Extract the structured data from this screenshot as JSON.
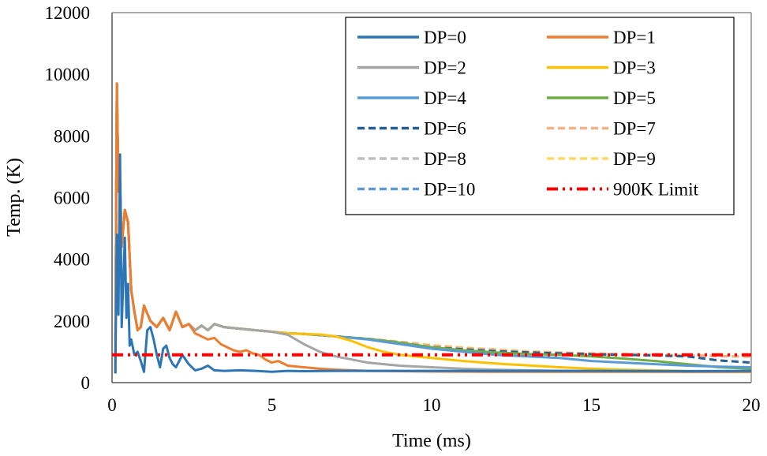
{
  "chart_data": {
    "type": "line",
    "title": "",
    "xlabel": "Time (ms)",
    "ylabel": "Temp. (K)",
    "xlim": [
      0,
      20
    ],
    "ylim": [
      0,
      12000
    ],
    "x_ticks": [
      "0",
      "5",
      "10",
      "15",
      "20"
    ],
    "y_ticks": [
      "0",
      "2000",
      "4000",
      "6000",
      "8000",
      "10000",
      "12000"
    ],
    "grid": false,
    "legend_position": "top-right",
    "series": [
      {
        "name": "DP=0",
        "color": "#2E75B6",
        "dash": "solid",
        "x": [
          0.1,
          0.15,
          0.2,
          0.25,
          0.3,
          0.35,
          0.4,
          0.45,
          0.5,
          0.55,
          0.6,
          0.7,
          0.8,
          0.9,
          1.0,
          1.1,
          1.2,
          1.3,
          1.4,
          1.5,
          1.6,
          1.7,
          1.8,
          1.9,
          2.0,
          2.2,
          2.4,
          2.6,
          2.8,
          3.0,
          3.2,
          3.5,
          4.0,
          4.5,
          5.0,
          5.5,
          6.0,
          7.0,
          8.0,
          10.0,
          12.0,
          15.0,
          18.0,
          20.0
        ],
        "y": [
          300,
          4800,
          2200,
          7400,
          1800,
          3300,
          4700,
          2100,
          3200,
          1200,
          1400,
          900,
          1000,
          700,
          350,
          1700,
          1800,
          1400,
          900,
          500,
          1100,
          1200,
          800,
          600,
          500,
          900,
          600,
          400,
          450,
          550,
          400,
          380,
          400,
          380,
          350,
          380,
          370,
          380,
          380,
          380,
          380,
          380,
          370,
          380
        ]
      },
      {
        "name": "DP=1",
        "color": "#ED7D31",
        "dash": "solid",
        "x": [
          0.1,
          0.15,
          0.2,
          0.25,
          0.3,
          0.4,
          0.5,
          0.6,
          0.7,
          0.8,
          0.9,
          1.0,
          1.2,
          1.4,
          1.6,
          1.8,
          2.0,
          2.2,
          2.4,
          2.6,
          2.8,
          3.0,
          3.2,
          3.4,
          3.6,
          3.8,
          4.0,
          4.2,
          4.4,
          4.6,
          4.8,
          5.0,
          5.2,
          5.5,
          6.0,
          6.5,
          7.0,
          7.5,
          8.0,
          9.0,
          10.0,
          12.0,
          15.0,
          20.0
        ],
        "y": [
          300,
          9700,
          6200,
          6500,
          4400,
          5600,
          5200,
          3000,
          2300,
          1700,
          1800,
          2500,
          2000,
          1800,
          2100,
          1700,
          2300,
          1800,
          1900,
          1600,
          1500,
          1400,
          1450,
          1250,
          1150,
          1050,
          1000,
          1050,
          950,
          900,
          750,
          650,
          700,
          550,
          500,
          450,
          420,
          400,
          380,
          370,
          360,
          350,
          350,
          350
        ]
      },
      {
        "name": "DP=2",
        "color": "#A5A5A5",
        "dash": "solid",
        "x": [
          0.1,
          0.15,
          0.2,
          0.25,
          0.3,
          0.4,
          0.5,
          0.6,
          0.7,
          0.8,
          0.9,
          1.0,
          1.2,
          1.4,
          1.6,
          1.8,
          2.0,
          2.2,
          2.4,
          2.6,
          2.8,
          3.0,
          3.2,
          3.5,
          4.0,
          4.5,
          5.0,
          5.5,
          6.0,
          6.5,
          7.0,
          7.5,
          8.0,
          8.5,
          9.0,
          10.0,
          11.0,
          12.0,
          14.0,
          16.0,
          18.0,
          20.0
        ],
        "y": [
          300,
          9700,
          6200,
          6500,
          4400,
          5600,
          5200,
          3000,
          2300,
          1700,
          1800,
          2500,
          2000,
          1800,
          2100,
          1700,
          2300,
          1800,
          1900,
          1700,
          1850,
          1700,
          1900,
          1800,
          1750,
          1700,
          1650,
          1550,
          1250,
          1000,
          850,
          750,
          650,
          600,
          550,
          500,
          450,
          420,
          380,
          360,
          350,
          350
        ]
      },
      {
        "name": "DP=3",
        "color": "#FFC000",
        "dash": "solid",
        "x": [
          0.1,
          0.15,
          0.2,
          0.25,
          0.3,
          0.4,
          0.5,
          0.6,
          0.7,
          0.8,
          0.9,
          1.0,
          1.2,
          1.4,
          1.6,
          1.8,
          2.0,
          2.2,
          2.4,
          2.6,
          2.8,
          3.0,
          3.2,
          3.5,
          4.0,
          4.5,
          5.0,
          5.5,
          6.0,
          6.5,
          7.0,
          7.5,
          8.0,
          8.5,
          9.0,
          10.0,
          11.0,
          12.0,
          13.0,
          14.0,
          15.0,
          16.0,
          18.0,
          20.0
        ],
        "y": [
          300,
          9700,
          6200,
          6500,
          4400,
          5600,
          5200,
          3000,
          2300,
          1700,
          1800,
          2500,
          2000,
          1800,
          2100,
          1700,
          2300,
          1800,
          1900,
          1700,
          1850,
          1700,
          1900,
          1800,
          1750,
          1700,
          1650,
          1600,
          1580,
          1560,
          1500,
          1350,
          1150,
          1000,
          900,
          800,
          700,
          620,
          560,
          500,
          450,
          420,
          380,
          350
        ]
      },
      {
        "name": "DP=4",
        "color": "#5B9BD5",
        "dash": "solid",
        "x": [
          0.1,
          0.15,
          0.2,
          0.25,
          0.3,
          0.4,
          0.5,
          0.6,
          0.7,
          0.8,
          0.9,
          1.0,
          1.2,
          1.4,
          1.6,
          1.8,
          2.0,
          2.2,
          2.4,
          2.6,
          2.8,
          3.0,
          3.2,
          3.5,
          4.0,
          4.5,
          5.0,
          5.5,
          6.0,
          7.0,
          8.0,
          9.0,
          10.0,
          11.0,
          12.0,
          13.0,
          14.0,
          15.0,
          16.0,
          17.0,
          18.0,
          19.0,
          20.0
        ],
        "y": [
          300,
          9700,
          6200,
          6500,
          4400,
          5600,
          5200,
          3000,
          2300,
          1700,
          1800,
          2500,
          2000,
          1800,
          2100,
          1700,
          2300,
          1800,
          1900,
          1700,
          1850,
          1700,
          1900,
          1800,
          1750,
          1700,
          1650,
          1600,
          1580,
          1500,
          1400,
          1250,
          1100,
          1000,
          900,
          850,
          800,
          700,
          650,
          600,
          550,
          520,
          500
        ]
      },
      {
        "name": "DP=5",
        "color": "#70AD47",
        "dash": "solid",
        "x": [
          0.1,
          0.15,
          0.2,
          0.25,
          0.3,
          0.4,
          0.5,
          0.6,
          0.7,
          0.8,
          0.9,
          1.0,
          1.2,
          1.4,
          1.6,
          1.8,
          2.0,
          2.2,
          2.4,
          2.6,
          2.8,
          3.0,
          3.2,
          3.5,
          4.0,
          4.5,
          5.0,
          5.5,
          6.0,
          7.0,
          8.0,
          9.0,
          10.0,
          11.0,
          12.0,
          13.0,
          14.0,
          15.0,
          16.0,
          17.0,
          18.0,
          19.0,
          20.0
        ],
        "y": [
          300,
          9700,
          6200,
          6500,
          4400,
          5600,
          5200,
          3000,
          2300,
          1700,
          1800,
          2500,
          2000,
          1800,
          2100,
          1700,
          2300,
          1800,
          1900,
          1700,
          1850,
          1700,
          1900,
          1800,
          1750,
          1700,
          1650,
          1600,
          1580,
          1500,
          1420,
          1300,
          1150,
          1050,
          980,
          930,
          900,
          850,
          780,
          700,
          600,
          500,
          450
        ]
      },
      {
        "name": "DP=6",
        "color": "#255E91",
        "dash": "dashed",
        "x": [
          0.1,
          0.15,
          0.2,
          0.25,
          0.3,
          0.4,
          0.5,
          0.6,
          0.7,
          0.8,
          0.9,
          1.0,
          1.2,
          1.4,
          1.6,
          1.8,
          2.0,
          2.2,
          2.4,
          2.6,
          2.8,
          3.0,
          3.2,
          3.5,
          4.0,
          4.5,
          5.0,
          5.5,
          6.0,
          7.0,
          8.0,
          9.0,
          10.0,
          11.0,
          12.0,
          13.0,
          14.0,
          15.0,
          16.0,
          17.0,
          18.0,
          19.0,
          20.0
        ],
        "y": [
          300,
          9700,
          6200,
          6500,
          4400,
          5600,
          5200,
          3000,
          2300,
          1700,
          1800,
          2500,
          2000,
          1800,
          2100,
          1700,
          2300,
          1800,
          1900,
          1700,
          1850,
          1700,
          1900,
          1800,
          1750,
          1700,
          1650,
          1600,
          1580,
          1500,
          1420,
          1300,
          1150,
          1080,
          1020,
          980,
          950,
          920,
          900,
          880,
          850,
          720,
          650
        ]
      },
      {
        "name": "DP=7",
        "color": "#F4B183",
        "dash": "dashed",
        "x": [
          0.1,
          0.15,
          0.2,
          0.25,
          0.3,
          0.4,
          0.5,
          0.6,
          0.7,
          0.8,
          0.9,
          1.0,
          1.2,
          1.4,
          1.6,
          1.8,
          2.0,
          2.2,
          2.4,
          2.6,
          2.8,
          3.0,
          3.2,
          3.5,
          4.0,
          4.5,
          5.0,
          5.5,
          6.0,
          7.0,
          8.0,
          9.0,
          10.0,
          11.0,
          12.0,
          13.0,
          14.0,
          15.0,
          16.0,
          17.0,
          18.0,
          19.0,
          20.0
        ],
        "y": [
          300,
          9700,
          6200,
          6500,
          4400,
          5600,
          5200,
          3000,
          2300,
          1700,
          1800,
          2500,
          2000,
          1800,
          2100,
          1700,
          2300,
          1800,
          1900,
          1700,
          1850,
          1700,
          1900,
          1800,
          1750,
          1700,
          1650,
          1600,
          1580,
          1500,
          1420,
          1320,
          1200,
          1120,
          1060,
          1000,
          970,
          940,
          920,
          900,
          880,
          860,
          850
        ]
      },
      {
        "name": "DP=8",
        "color": "#BFBFBF",
        "dash": "dashed",
        "x": [
          0.1,
          0.15,
          0.2,
          0.25,
          0.3,
          0.4,
          0.5,
          0.6,
          0.7,
          0.8,
          0.9,
          1.0,
          1.2,
          1.4,
          1.6,
          1.8,
          2.0,
          2.2,
          2.4,
          2.6,
          2.8,
          3.0,
          3.2,
          3.5,
          4.0,
          4.5,
          5.0,
          5.5,
          6.0,
          7.0,
          8.0,
          9.0,
          10.0,
          11.0,
          12.0,
          13.0,
          14.0,
          15.0,
          16.0,
          17.0,
          18.0,
          19.0,
          20.0
        ],
        "y": [
          300,
          9700,
          6200,
          6500,
          4400,
          5600,
          5200,
          3000,
          2300,
          1700,
          1800,
          2500,
          2000,
          1800,
          2100,
          1700,
          2300,
          1800,
          1900,
          1700,
          1850,
          1700,
          1900,
          1800,
          1750,
          1700,
          1650,
          1600,
          1580,
          1500,
          1420,
          1320,
          1200,
          1120,
          1060,
          1000,
          970,
          940,
          920,
          900,
          880,
          860,
          840
        ]
      },
      {
        "name": "DP=9",
        "color": "#FFD966",
        "dash": "dashed",
        "x": [
          0.1,
          0.15,
          0.2,
          0.25,
          0.3,
          0.4,
          0.5,
          0.6,
          0.7,
          0.8,
          0.9,
          1.0,
          1.2,
          1.4,
          1.6,
          1.8,
          2.0,
          2.2,
          2.4,
          2.6,
          2.8,
          3.0,
          3.2,
          3.5,
          4.0,
          4.5,
          5.0,
          5.5,
          6.0,
          7.0,
          8.0,
          9.0,
          10.0,
          11.0,
          12.0,
          13.0,
          14.0,
          15.0,
          16.0,
          17.0,
          18.0,
          19.0,
          20.0
        ],
        "y": [
          300,
          9700,
          6200,
          6500,
          4400,
          5600,
          5200,
          3000,
          2300,
          1700,
          1800,
          2500,
          2000,
          1800,
          2100,
          1700,
          2300,
          1800,
          1900,
          1700,
          1850,
          1700,
          1900,
          1800,
          1750,
          1700,
          1650,
          1600,
          1580,
          1500,
          1420,
          1330,
          1220,
          1140,
          1080,
          1020,
          980,
          950,
          930,
          910,
          890,
          870,
          850
        ]
      },
      {
        "name": "DP=10",
        "color": "#5B9BD5",
        "dash": "dashed",
        "x": [
          0.1,
          0.15,
          0.2,
          0.25,
          0.3,
          0.4,
          0.5,
          0.6,
          0.7,
          0.8,
          0.9,
          1.0,
          1.2,
          1.4,
          1.6,
          1.8,
          2.0,
          2.2,
          2.4,
          2.6,
          2.8,
          3.0,
          3.2,
          3.5,
          4.0,
          4.5,
          5.0,
          5.5,
          6.0,
          7.0,
          8.0,
          9.0,
          10.0,
          11.0,
          12.0,
          13.0,
          14.0,
          15.0,
          16.0,
          17.0,
          18.0,
          19.0,
          20.0
        ],
        "y": [
          300,
          9700,
          6200,
          6500,
          4400,
          5600,
          5200,
          3000,
          2300,
          1700,
          1800,
          2500,
          2000,
          1800,
          2100,
          1700,
          2300,
          1800,
          1900,
          1700,
          1850,
          1700,
          1900,
          1800,
          1750,
          1700,
          1650,
          1600,
          1580,
          1500,
          1420,
          1320,
          1200,
          1120,
          1060,
          1000,
          970,
          940,
          920,
          900,
          880,
          860,
          840
        ]
      },
      {
        "name": "900K Limit",
        "color": "#FF0000",
        "dash": "dashdotdot",
        "x": [
          0,
          20
        ],
        "y": [
          900,
          900
        ]
      }
    ]
  }
}
